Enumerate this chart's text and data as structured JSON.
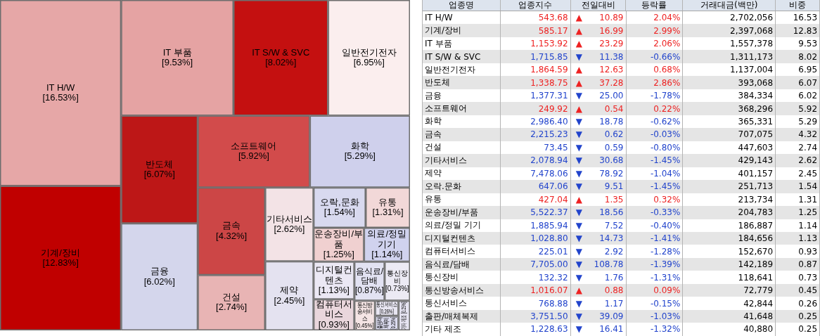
{
  "chart_data": [
    {
      "type": "other",
      "categories": [
        "IT H/W",
        "기계/장비",
        "IT 부품",
        "IT S/W & SVC",
        "일반전기전자",
        "반도체",
        "금융",
        "소프트웨어",
        "화학",
        "금속",
        "건설",
        "기타서비스",
        "제약",
        "오락,문화",
        "유통",
        "운송장비/부품",
        "의료/정밀 기기",
        "디지털컨텐츠",
        "컴퓨터서비스",
        "음식료/담배",
        "통신장비",
        "통신방송서비스",
        "통신서비스",
        "출판/매체복제",
        "기타 제조"
      ],
      "values": [
        16.53,
        12.83,
        9.53,
        8.02,
        6.95,
        6.07,
        6.02,
        5.92,
        5.29,
        4.32,
        2.74,
        2.62,
        2.45,
        1.54,
        1.31,
        1.25,
        1.14,
        1.13,
        0.93,
        0.87,
        0.73,
        0.45,
        0.26,
        0.25,
        0.25
      ],
      "value_labels": [
        "[16.53%]",
        "[12.83%]",
        "[9.53%]",
        "[8.02%]",
        "[6.95%]",
        "[6.07%]",
        "[6.02%]",
        "[5.92%]",
        "[5.29%]",
        "[4.32%]",
        "[2.74%]",
        "[2.62%]",
        "[2.45%]",
        "[1.54%]",
        "[1.31%]",
        "[1.25%]",
        "[1.14%]",
        "[1.13%]",
        "[0.93%]",
        "[0.87%]",
        "[0.73%]",
        "[0.45%]",
        "[0.26%]",
        "[0.25%]",
        "[0.25%]"
      ],
      "colors": [
        "#e6a7a7",
        "#c00000",
        "#e5a3a3",
        "#c41010",
        "#fbeeee",
        "#bd1717",
        "#d4d6ec",
        "#d24b4b",
        "#cfd0ec",
        "#cc4646",
        "#e8b4b4",
        "#f3e3e6",
        "#e4e2f0",
        "#d8d9ef",
        "#f2d8d8",
        "#f0d0d0",
        "#d0d2ee",
        "#ebe8f4",
        "#e9d6dc",
        "#e2e2f2",
        "#eceaf4",
        "#f4e4e4",
        "#e8e6f2",
        "#dcdcf0",
        "#e6e4f2"
      ]
    },
    {
      "type": "other",
      "ylabel": "업종명",
      "categories": [
        "IT H/W",
        "기계/장비",
        "IT 부품",
        "IT S/W & SVC",
        "일반전기전자",
        "반도체",
        "금융",
        "소프트웨어",
        "화학",
        "금속",
        "건설",
        "기타서비스",
        "제약",
        "오락.문화",
        "유통",
        "운송장비/부품",
        "의료/정밀 기기",
        "디지털컨텐츠",
        "컴퓨터서비스",
        "음식료/담배",
        "통신장비",
        "통신방송서비스",
        "통신서비스",
        "출판/매체복제",
        "기타 제조"
      ],
      "series": [
        {
          "name": "업종지수",
          "values": [
            543.68,
            585.17,
            1153.92,
            1715.85,
            1864.59,
            1338.75,
            1377.31,
            249.92,
            2986.4,
            2215.23,
            73.45,
            2078.94,
            7478.06,
            647.06,
            427.04,
            5522.37,
            1885.94,
            1028.8,
            225.01,
            7705.0,
            132.32,
            1016.07,
            768.88,
            3751.5,
            1228.63
          ],
          "value_labels": [
            "543.68",
            "585.17",
            "1,153.92",
            "1,715.85",
            "1,864.59",
            "1,338.75",
            "1,377.31",
            "249.92",
            "2,986.40",
            "2,215.23",
            "73.45",
            "2,078.94",
            "7,478.06",
            "647.06",
            "427.04",
            "5,522.37",
            "1,885.94",
            "1,028.80",
            "225.01",
            "7,705.00",
            "132.32",
            "1,016.07",
            "768.88",
            "3,751.50",
            "1,228.63"
          ],
          "colors": [
            "#ee2222",
            "#ee2222",
            "#ee2222",
            "#2244cc",
            "#ee2222",
            "#ee2222",
            "#2244cc",
            "#ee2222",
            "#2244cc",
            "#2244cc",
            "#2244cc",
            "#2244cc",
            "#2244cc",
            "#2244cc",
            "#ee2222",
            "#2244cc",
            "#2244cc",
            "#2244cc",
            "#2244cc",
            "#2244cc",
            "#2244cc",
            "#ee2222",
            "#2244cc",
            "#2244cc",
            "#2244cc"
          ]
        },
        {
          "name": "전일대비",
          "values": [
            10.89,
            16.99,
            23.29,
            11.38,
            12.63,
            37.28,
            25.0,
            0.54,
            18.78,
            0.62,
            0.59,
            30.68,
            78.92,
            9.51,
            1.35,
            18.56,
            7.52,
            14.73,
            2.92,
            108.78,
            1.76,
            0.88,
            1.17,
            39.09,
            16.41
          ],
          "value_labels": [
            "▲ 10.89",
            "▲ 16.99",
            "▲ 23.29",
            "▼ 11.38",
            "▲ 12.63",
            "▲ 37.28",
            "▼ 25.00",
            "▲ 0.54",
            "▼ 18.78",
            "▼ 0.62",
            "▼ 0.59",
            "▼ 30.68",
            "▼ 78.92",
            "▼ 9.51",
            "▲ 1.35",
            "▼ 18.56",
            "▼ 7.52",
            "▼ 14.73",
            "▼ 2.92",
            "▼ 108.78",
            "▼ 1.76",
            "▲ 0.88",
            "▼ 1.17",
            "▼ 39.09",
            "▼ 16.41"
          ],
          "colors": [
            "#ee2222",
            "#ee2222",
            "#ee2222",
            "#2244cc",
            "#ee2222",
            "#ee2222",
            "#2244cc",
            "#ee2222",
            "#2244cc",
            "#2244cc",
            "#2244cc",
            "#2244cc",
            "#2244cc",
            "#2244cc",
            "#ee2222",
            "#2244cc",
            "#2244cc",
            "#2244cc",
            "#2244cc",
            "#2244cc",
            "#2244cc",
            "#ee2222",
            "#2244cc",
            "#2244cc",
            "#2244cc"
          ]
        },
        {
          "name": "등락률",
          "values": [
            2.04,
            2.99,
            2.06,
            -0.66,
            0.68,
            2.86,
            -1.78,
            0.22,
            -0.62,
            -0.03,
            -0.8,
            -1.45,
            -1.04,
            -1.45,
            0.32,
            -0.33,
            -0.4,
            -1.41,
            -1.28,
            -1.39,
            -1.31,
            0.09,
            -0.15,
            -1.03,
            -1.32
          ],
          "value_labels": [
            "2.04%",
            "2.99%",
            "2.06%",
            "-0.66%",
            "0.68%",
            "2.86%",
            "-1.78%",
            "0.22%",
            "-0.62%",
            "-0.03%",
            "-0.80%",
            "-1.45%",
            "-1.04%",
            "-1.45%",
            "0.32%",
            "-0.33%",
            "-0.40%",
            "-1.41%",
            "-1.28%",
            "-1.39%",
            "-1.31%",
            "0.09%",
            "-0.15%",
            "-1.03%",
            "-1.32%"
          ],
          "colors": [
            "#ee2222",
            "#ee2222",
            "#ee2222",
            "#2244cc",
            "#ee2222",
            "#ee2222",
            "#2244cc",
            "#ee2222",
            "#2244cc",
            "#2244cc",
            "#2244cc",
            "#2244cc",
            "#2244cc",
            "#2244cc",
            "#ee2222",
            "#2244cc",
            "#2244cc",
            "#2244cc",
            "#2244cc",
            "#2244cc",
            "#2244cc",
            "#ee2222",
            "#2244cc",
            "#2244cc",
            "#2244cc"
          ]
        },
        {
          "name": "거래대금(백만)",
          "color": "#000000",
          "values": [
            2702056,
            2397068,
            1557378,
            1311173,
            1137004,
            393068,
            384334,
            368296,
            365331,
            707075,
            447603,
            429143,
            401157,
            251713,
            213734,
            204783,
            186887,
            184656,
            152670,
            142189,
            118641,
            72779,
            42844,
            41648,
            40880
          ],
          "value_labels": [
            "2,702,056",
            "2,397,068",
            "1,557,378",
            "1,311,173",
            "1,137,004",
            "393,068",
            "384,334",
            "368,296",
            "365,331",
            "707,075",
            "447,603",
            "429,143",
            "401,157",
            "251,713",
            "213,734",
            "204,783",
            "186,887",
            "184,656",
            "152,670",
            "142,189",
            "118,641",
            "72,779",
            "42,844",
            "41,648",
            "40,880"
          ]
        },
        {
          "name": "비중",
          "color": "#000000",
          "values": [
            16.53,
            12.83,
            9.53,
            8.02,
            6.95,
            6.07,
            6.02,
            5.92,
            5.29,
            4.32,
            2.74,
            2.62,
            2.45,
            1.54,
            1.31,
            1.25,
            1.14,
            1.13,
            0.93,
            0.87,
            0.73,
            0.45,
            0.26,
            0.25,
            0.25
          ],
          "value_labels": [
            "16.53",
            "12.83",
            "9.53",
            "8.02",
            "6.95",
            "6.07",
            "6.02",
            "5.92",
            "5.29",
            "4.32",
            "2.74",
            "2.62",
            "2.45",
            "1.54",
            "1.31",
            "1.25",
            "1.14",
            "1.13",
            "0.93",
            "0.87",
            "0.73",
            "0.45",
            "0.26",
            "0.25",
            "0.25"
          ]
        }
      ]
    }
  ]
}
